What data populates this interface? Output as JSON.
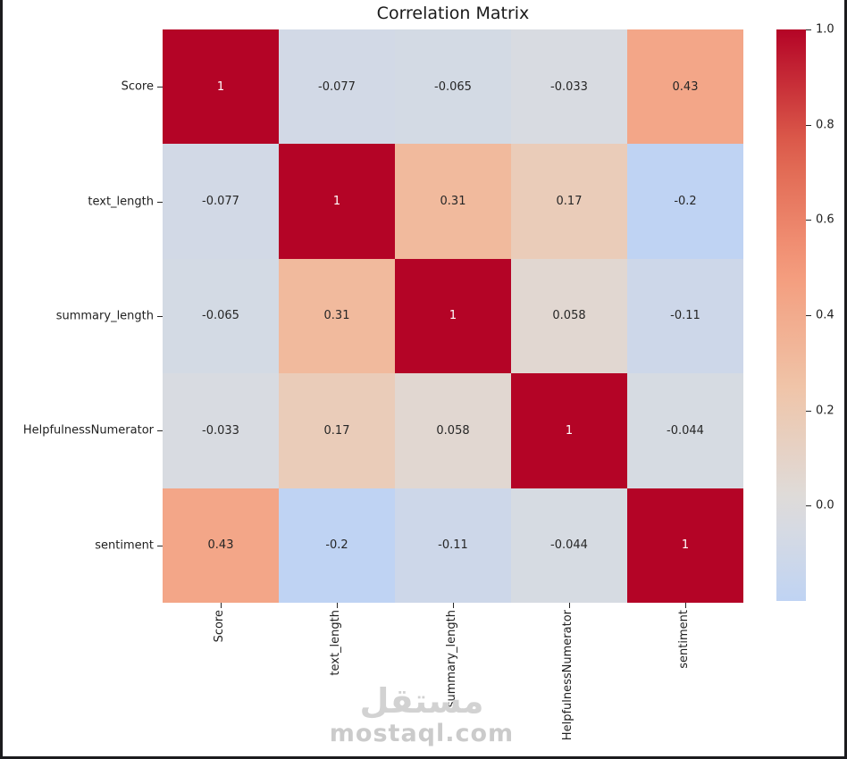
{
  "figure": {
    "title": "Correlation Matrix"
  },
  "chart_data": {
    "type": "heatmap",
    "title": "Correlation Matrix",
    "categories": [
      "Score",
      "text_length",
      "summary_length",
      "HelpfulnessNumerator",
      "sentiment"
    ],
    "matrix": [
      [
        1,
        -0.077,
        -0.065,
        -0.033,
        0.43
      ],
      [
        -0.077,
        1,
        0.31,
        0.17,
        -0.2
      ],
      [
        -0.065,
        0.31,
        1,
        0.058,
        -0.11
      ],
      [
        -0.033,
        0.17,
        0.058,
        1,
        -0.044
      ],
      [
        0.43,
        -0.2,
        -0.11,
        -0.044,
        1
      ]
    ],
    "colormap": "coolwarm",
    "vmin": -0.2,
    "vmax": 1.0,
    "center": 0.0,
    "colorbar": {
      "position": "right",
      "ticks": [
        {
          "label": "1.0",
          "value": 1.0
        },
        {
          "label": "0.8",
          "value": 0.8
        },
        {
          "label": "0.6",
          "value": 0.6
        },
        {
          "label": "0.4",
          "value": 0.4
        },
        {
          "label": "0.2",
          "value": 0.2
        },
        {
          "label": "0.0",
          "value": 0.0
        }
      ]
    },
    "colormap_anchors": [
      [
        0.0,
        [
          59,
          76,
          192
        ]
      ],
      [
        0.125,
        [
          98,
          130,
          234
        ]
      ],
      [
        0.25,
        [
          141,
          176,
          254
        ]
      ],
      [
        0.375,
        [
          184,
          208,
          249
        ]
      ],
      [
        0.5,
        [
          221,
          221,
          221
        ]
      ],
      [
        0.625,
        [
          240,
          196,
          168
        ]
      ],
      [
        0.75,
        [
          244,
          154,
          123
        ]
      ],
      [
        0.875,
        [
          222,
          96,
          77
        ]
      ],
      [
        1.0,
        [
          180,
          4,
          38
        ]
      ]
    ],
    "colors": {
      "max_cell": "#b40426",
      "min_cell": "#bfd3f3",
      "dark_text": "#262626",
      "light_text": "#ffffff",
      "tick_mark": "#262626"
    },
    "grid": false,
    "annotated": true
  },
  "watermark": {
    "logo_text": "مستقل",
    "site_text": "mostaql.com"
  }
}
